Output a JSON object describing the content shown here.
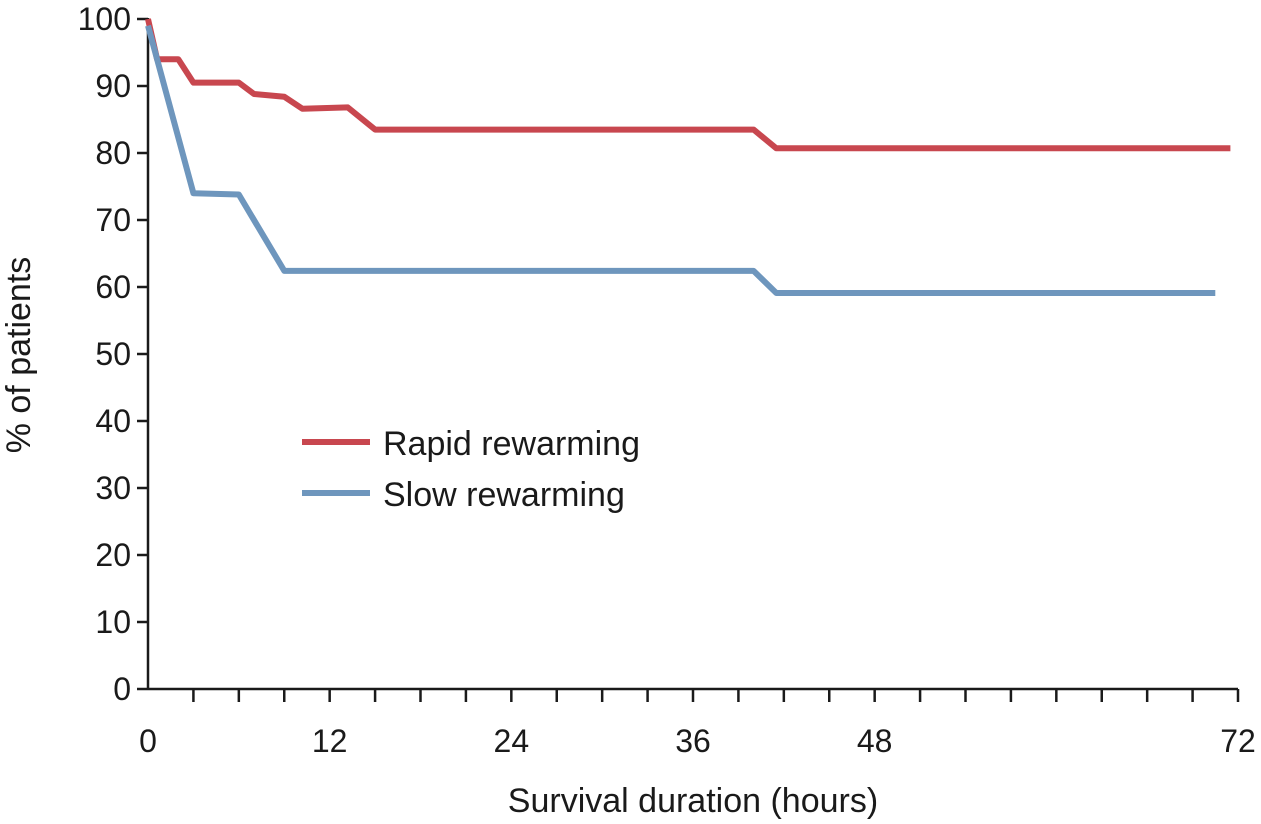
{
  "chart_data": {
    "type": "line",
    "xlabel": "Survival duration (hours)",
    "ylabel": "% of patients",
    "xlim": [
      0,
      72
    ],
    "ylim": [
      0,
      100
    ],
    "xticks": [
      0,
      12,
      24,
      36,
      48,
      72
    ],
    "xtick_labels": [
      "0",
      "12",
      "24",
      "36",
      "48",
      "72"
    ],
    "xminor_step": 3,
    "yticks": [
      0,
      10,
      20,
      30,
      40,
      50,
      60,
      70,
      80,
      90,
      100
    ],
    "ytick_labels": [
      "0",
      "10",
      "20",
      "30",
      "40",
      "50",
      "60",
      "70",
      "80",
      "90",
      "100"
    ],
    "grid": false,
    "legend_position": "center-left",
    "series": [
      {
        "name": "Rapid rewarming",
        "color": "#c8474f",
        "points": [
          [
            0,
            100
          ],
          [
            0.6,
            94
          ],
          [
            2,
            94
          ],
          [
            3,
            90.5
          ],
          [
            6,
            90.5
          ],
          [
            7,
            88.8
          ],
          [
            9,
            88.4
          ],
          [
            10.2,
            86.6
          ],
          [
            13.2,
            86.8
          ],
          [
            15,
            83.5
          ],
          [
            39,
            83.5
          ],
          [
            40,
            83.5
          ],
          [
            41.5,
            80.7
          ],
          [
            71.5,
            80.7
          ]
        ]
      },
      {
        "name": "Slow rewarming",
        "color": "#6e96bd",
        "points": [
          [
            0,
            99
          ],
          [
            3,
            74
          ],
          [
            6,
            73.8
          ],
          [
            9,
            62.4
          ],
          [
            40,
            62.4
          ],
          [
            41.5,
            59.1
          ],
          [
            70.5,
            59.1
          ]
        ]
      }
    ]
  }
}
